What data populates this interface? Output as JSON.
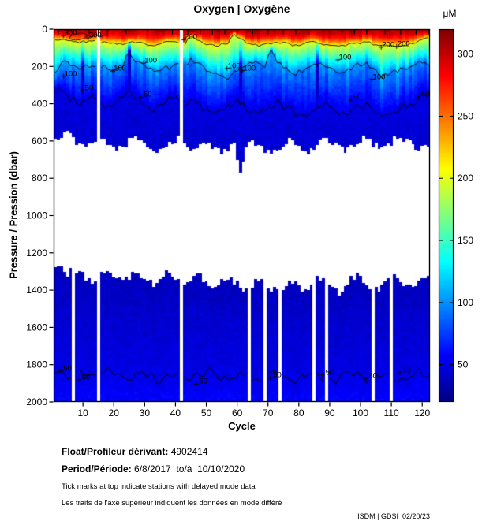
{
  "title": "Oxygen | Oxygène",
  "chart_data": {
    "type": "heatmap",
    "title": "Oxygen | Oxygène",
    "xlabel": "Cycle",
    "ylabel": "Pressure / Pression (dbar)",
    "colorbar_label": "μM",
    "colormap": "jet",
    "value_range_um": [
      20,
      320
    ],
    "colorbar_ticks": [
      50,
      100,
      150,
      200,
      250,
      300
    ],
    "x_ticks": [
      10,
      20,
      30,
      40,
      50,
      60,
      70,
      80,
      90,
      100,
      110,
      120
    ],
    "y_ticks": [
      0,
      200,
      400,
      600,
      800,
      1000,
      1200,
      1400,
      1600,
      1800,
      2000
    ],
    "cycle_range": [
      1,
      122
    ],
    "pressure_range_dbar": [
      0,
      2000
    ],
    "no_data_band_dbar_approx": [
      640,
      1280
    ],
    "contour_levels": [
      50,
      100,
      200,
      300
    ],
    "cycle_sample_step": 2,
    "series": {
      "surface_oxygen_um": [
        296,
        301,
        305,
        299,
        294,
        300,
        306,
        310,
        303,
        297,
        295,
        302,
        308,
        304,
        298,
        296,
        303,
        309,
        305,
        300,
        297,
        304,
        310,
        306,
        301,
        298,
        305,
        311,
        307,
        302,
        299,
        306,
        312,
        308,
        303,
        300,
        307,
        304,
        298,
        302,
        308,
        305,
        299,
        303,
        309,
        306,
        300,
        304,
        310,
        307,
        301,
        305,
        298,
        302,
        308,
        304,
        299,
        303,
        306,
        301,
        304
      ],
      "contour200_depth_dbar": [
        58,
        52,
        56,
        63,
        70,
        66,
        60,
        67,
        73,
        70,
        76,
        80,
        74,
        69,
        73,
        82,
        88,
        78,
        71,
        66,
        72,
        80,
        34,
        62,
        76,
        84,
        88,
        82,
        74,
        30,
        48,
        74,
        84,
        88,
        83,
        77,
        71,
        75,
        82,
        86,
        80,
        72,
        69,
        74,
        83,
        89,
        93,
        87,
        81,
        75,
        71,
        74,
        81,
        87,
        92,
        96,
        89,
        83,
        78,
        62,
        44
      ],
      "contour100_depth_dbar": [
        238,
        180,
        186,
        200,
        212,
        196,
        186,
        191,
        206,
        216,
        200,
        190,
        112,
        172,
        186,
        202,
        216,
        226,
        210,
        196,
        186,
        202,
        152,
        182,
        206,
        222,
        238,
        252,
        258,
        238,
        202,
        186,
        176,
        192,
        212,
        108,
        182,
        202,
        222,
        236,
        226,
        210,
        196,
        186,
        202,
        216,
        230,
        220,
        206,
        190,
        180,
        196,
        216,
        258,
        244,
        228,
        214,
        204,
        192,
        178,
        186
      ],
      "contour50_upper_depth_dbar": [
        340,
        332,
        350,
        380,
        400,
        372,
        356,
        376,
        405,
        420,
        396,
        370,
        346,
        366,
        390,
        415,
        430,
        410,
        386,
        362,
        376,
        400,
        362,
        392,
        420,
        440,
        455,
        436,
        410,
        382,
        396,
        420,
        445,
        460,
        440,
        416,
        392,
        406,
        430,
        450,
        465,
        446,
        420,
        396,
        410,
        436,
        455,
        470,
        450,
        426,
        402,
        416,
        440,
        460,
        470,
        456,
        430,
        406,
        392,
        372,
        356
      ],
      "upper_block_bottom_dbar": [
        598,
        580,
        562,
        590,
        620,
        640,
        612,
        586,
        606,
        634,
        654,
        630,
        600,
        576,
        596,
        624,
        644,
        660,
        636,
        606,
        582,
        602,
        640,
        620,
        592,
        612,
        644,
        664,
        640,
        612,
        758,
        632,
        602,
        622,
        650,
        670,
        646,
        616,
        592,
        612,
        640,
        660,
        636,
        606,
        586,
        606,
        634,
        654,
        630,
        602,
        582,
        602,
        630,
        650,
        626,
        596,
        576,
        596,
        624,
        644,
        616
      ],
      "lower_block_top_dbar": [
        1262,
        1288,
        1310,
        1282,
        1300,
        1330,
        1350,
        1322,
        1292,
        1312,
        1340,
        1360,
        1332,
        1302,
        1322,
        1350,
        1370,
        1342,
        1312,
        1332,
        1360,
        1380,
        1352,
        1322,
        1342,
        1370,
        1390,
        1362,
        1332,
        1352,
        1380,
        1400,
        1372,
        1342,
        1362,
        1390,
        1410,
        1382,
        1352,
        1372,
        1400,
        1382,
        1352,
        1332,
        1356,
        1386,
        1406,
        1376,
        1346,
        1326,
        1352,
        1382,
        1400,
        1372,
        1342,
        1322,
        1346,
        1376,
        1396,
        1366,
        1336
      ],
      "contour50_deep_depth_dbar": [
        1822,
        1840,
        1860,
        1846,
        1830,
        1850,
        1870,
        1856,
        1840,
        1826,
        1846,
        1866,
        1880,
        1860,
        1842,
        1856,
        1876,
        1890,
        1870,
        1850,
        1836,
        1856,
        1876,
        1860,
        1846,
        1830,
        1850,
        1870,
        1886,
        1866,
        1848,
        1862,
        1880,
        1896,
        1872,
        1852,
        1838,
        1858,
        1878,
        1890,
        1868,
        1850,
        1836,
        1856,
        1874,
        1888,
        1866,
        1846,
        1832,
        1852,
        1872,
        1886,
        1864,
        1844,
        1858,
        1876,
        1890,
        1870,
        1852,
        1840,
        1856
      ]
    },
    "missing_cycles_upper": [
      15,
      42
    ],
    "missing_cycles_lower": [
      7,
      15,
      42,
      64,
      69,
      74,
      85,
      89,
      104,
      110
    ],
    "dark_streak_cycles": [
      10,
      25,
      61,
      86
    ],
    "delayed_mode_tick_cycles": [
      2,
      5,
      8,
      12,
      15,
      18,
      24,
      31,
      39,
      44,
      48,
      52,
      56,
      60,
      65,
      70,
      75,
      79,
      83,
      88,
      94,
      98,
      102,
      108,
      113,
      118,
      122
    ],
    "contour_labels": [
      {
        "text": "300",
        "cycle": 6,
        "depth": 22
      },
      {
        "text": "300",
        "cycle": 14,
        "depth": 34
      },
      {
        "text": "200",
        "cycle": 45,
        "depth": 44
      },
      {
        "text": "200",
        "cycle": 109,
        "depth": 84
      },
      {
        "text": "200",
        "cycle": 114,
        "depth": 80
      },
      {
        "text": "100",
        "cycle": 6,
        "depth": 240
      },
      {
        "text": "100",
        "cycle": 22,
        "depth": 212
      },
      {
        "text": "100",
        "cycle": 32,
        "depth": 170
      },
      {
        "text": "100",
        "cycle": 59,
        "depth": 198
      },
      {
        "text": "100",
        "cycle": 64,
        "depth": 210
      },
      {
        "text": "100",
        "cycle": 95,
        "depth": 152
      },
      {
        "text": "100",
        "cycle": 106,
        "depth": 256
      },
      {
        "text": "50",
        "cycle": 12,
        "depth": 318
      },
      {
        "text": "50",
        "cycle": 31,
        "depth": 352
      },
      {
        "text": "50",
        "cycle": 99,
        "depth": 368
      },
      {
        "text": "50",
        "cycle": 121,
        "depth": 352
      },
      {
        "text": "50",
        "cycle": 5,
        "depth": 1822
      },
      {
        "text": "50",
        "cycle": 11,
        "depth": 1868
      },
      {
        "text": "50",
        "cycle": 49,
        "depth": 1892
      },
      {
        "text": "50",
        "cycle": 73,
        "depth": 1858
      },
      {
        "text": "50",
        "cycle": 90,
        "depth": 1842
      },
      {
        "text": "50",
        "cycle": 104,
        "depth": 1862
      },
      {
        "text": "50",
        "cycle": 115,
        "depth": 1830
      }
    ]
  },
  "footer": {
    "float_label": "Float/Profileur dérivant:",
    "float_value": " 4902414",
    "period_label": "Period/Période:",
    "period_value": " 6/8/2017  to/à  10/10/2020",
    "note_en": "Tick marks at top indicate stations with delayed mode data",
    "note_fr": "Les traits de l'axe supérieur indiquent les données en mode différé",
    "credit": "ISDM | GDSI  02/20/23"
  }
}
